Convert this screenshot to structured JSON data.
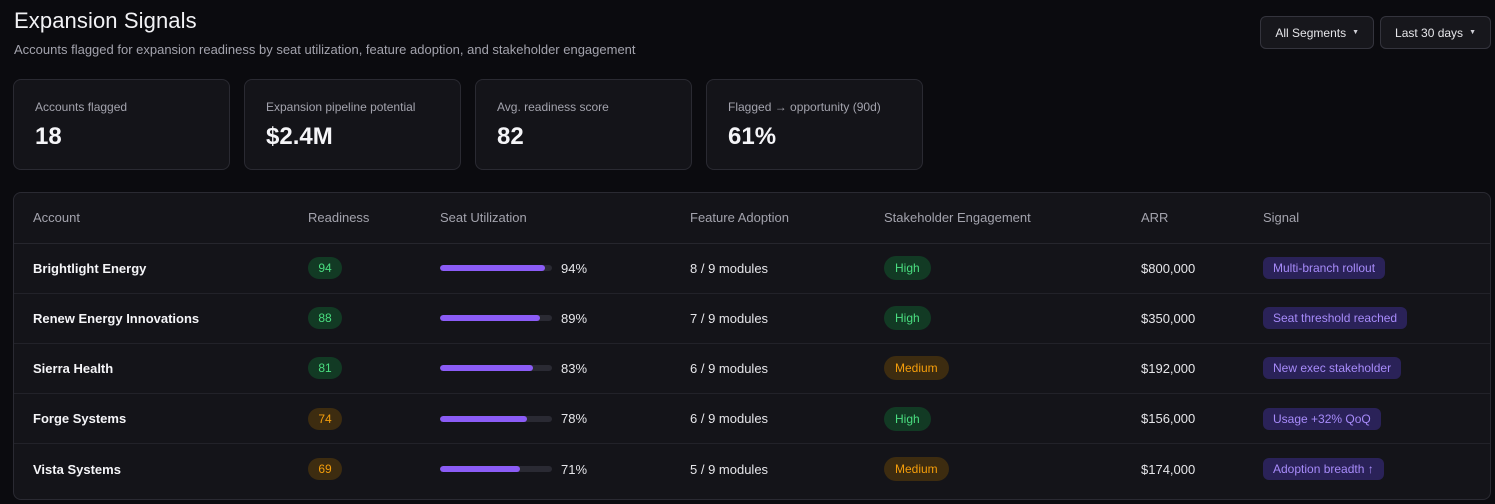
{
  "header": {
    "title": "Expansion Signals",
    "subtitle": "Accounts flagged for expansion readiness by seat utilization, feature adoption, and stakeholder engagement"
  },
  "filters": {
    "segment": "All Segments",
    "range": "Last 30 days",
    "caret_icon": "caret-down-icon"
  },
  "kpis": [
    {
      "label": "Accounts flagged",
      "value": "18"
    },
    {
      "label": "Expansion pipeline potential",
      "value": "$2.4M"
    },
    {
      "label": "Avg. readiness score",
      "value": "82"
    },
    {
      "label": "Flagged → opportunity (90d)",
      "value": "61%"
    }
  ],
  "table": {
    "columns": [
      "Account",
      "Readiness",
      "Seat Utilization",
      "Feature Adoption",
      "Stakeholder Engagement",
      "ARR",
      "Signal"
    ],
    "rows": [
      {
        "account": "Brightlight Energy",
        "readiness": "94",
        "readiness_level": "good",
        "seat_pct": 94,
        "seat_label": "94%",
        "adoption": "8 / 9 modules",
        "engagement": "High",
        "arr": "$800,000",
        "signal": "Multi-branch rollout"
      },
      {
        "account": "Renew Energy Innovations",
        "readiness": "88",
        "readiness_level": "good",
        "seat_pct": 89,
        "seat_label": "89%",
        "adoption": "7 / 9 modules",
        "engagement": "High",
        "arr": "$350,000",
        "signal": "Seat threshold reached"
      },
      {
        "account": "Sierra Health",
        "readiness": "81",
        "readiness_level": "good",
        "seat_pct": 83,
        "seat_label": "83%",
        "adoption": "6 / 9 modules",
        "engagement": "Medium",
        "arr": "$192,000",
        "signal": "New exec stakeholder"
      },
      {
        "account": "Forge Systems",
        "readiness": "74",
        "readiness_level": "warn",
        "seat_pct": 78,
        "seat_label": "78%",
        "adoption": "6 / 9 modules",
        "engagement": "High",
        "arr": "$156,000",
        "signal": "Usage +32% QoQ"
      },
      {
        "account": "Vista Systems",
        "readiness": "69",
        "readiness_level": "warn",
        "seat_pct": 71,
        "seat_label": "71%",
        "adoption": "5 / 9 modules",
        "engagement": "Medium",
        "arr": "$174,000",
        "signal": "Adoption breadth ↑"
      }
    ]
  },
  "colors": {
    "accent": "#8b5cf6",
    "good": "#4ade80",
    "warn": "#f59e0b",
    "background": "#0b0b0f"
  }
}
